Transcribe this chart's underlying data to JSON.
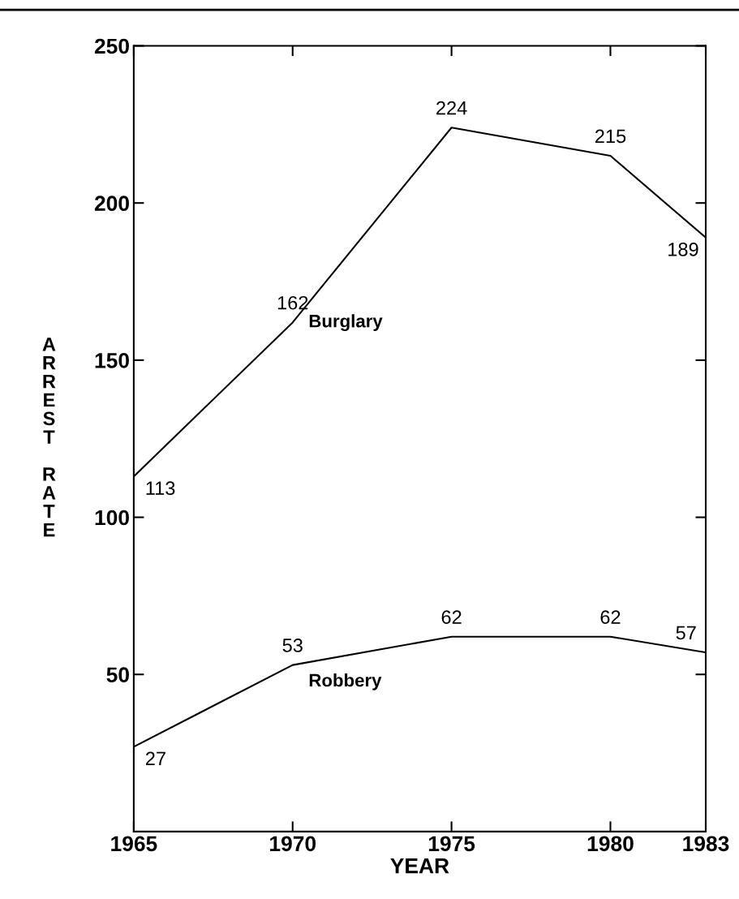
{
  "chart_data": {
    "type": "line",
    "xlabel": "YEAR",
    "ylabel": "ARREST RATE",
    "x": [
      1965,
      1970,
      1975,
      1980,
      1983
    ],
    "series": [
      {
        "name": "Burglary",
        "color": "#000000",
        "values": [
          113,
          162,
          224,
          215,
          189
        ]
      },
      {
        "name": "Robbery",
        "color": "#000000",
        "values": [
          27,
          53,
          62,
          62,
          57
        ]
      }
    ],
    "xlim": [
      1965,
      1983
    ],
    "xticks": [
      1965,
      1970,
      1975,
      1980,
      1983
    ],
    "ylim": [
      0,
      250
    ],
    "yticks": [
      50,
      100,
      150,
      200,
      250
    ],
    "data_labels": true,
    "grid": false,
    "legend": false,
    "marker": "none",
    "line_style": "solid"
  }
}
